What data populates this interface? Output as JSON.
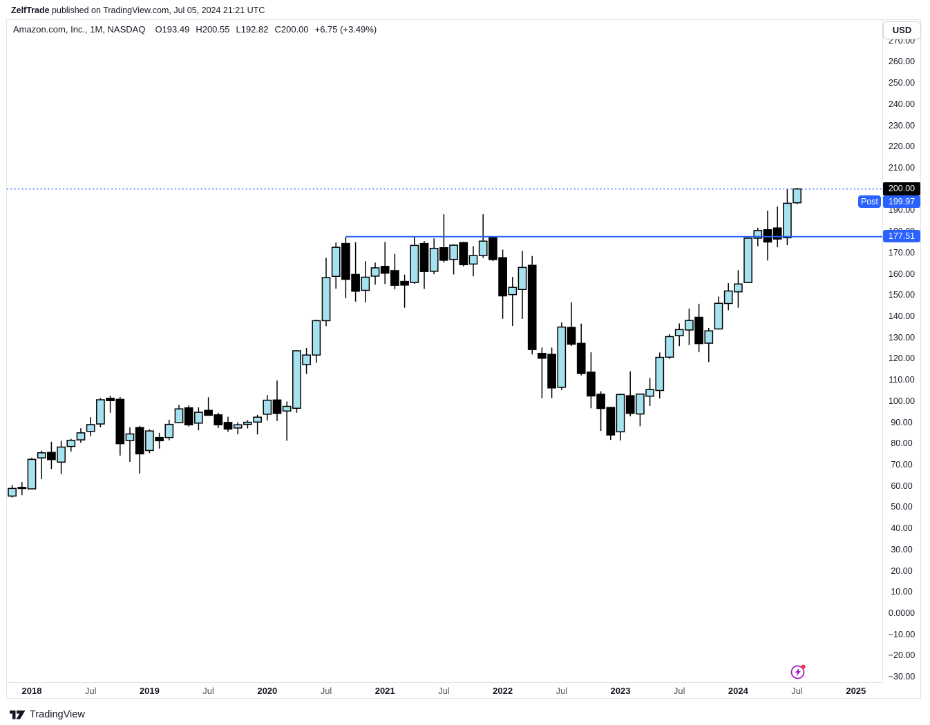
{
  "attribution": {
    "author": "ZelfTrade",
    "text": " published on TradingView.com, Jul 05, 2024 21:21 UTC"
  },
  "header": {
    "symbol_title": "Amazon.com, Inc., 1M, NASDAQ",
    "open": "O193.49",
    "high": "H200.55",
    "low": "L192.82",
    "close": "C200.00",
    "change": "+6.75 (+3.49%)"
  },
  "price_scale": {
    "currency": "USD",
    "last_price_label": "200.00",
    "post_label": "Post",
    "post_price_label": "199.97",
    "ray_price_label": "177.51"
  },
  "footer": {
    "brand": "TradingView"
  },
  "chart_data": {
    "type": "candlestick",
    "title": "Amazon.com, Inc.",
    "interval": "1M",
    "exchange": "NASDAQ",
    "up_color": "#A6E1EF",
    "down_color": "#000000",
    "wick_color": "#000000",
    "line_color": "#2962FF",
    "last_label_bg": "#000000",
    "grid": "off",
    "legend_position": "none",
    "y_axis": {
      "min": -30,
      "max": 270,
      "step": 10,
      "zero_label": "0.0000"
    },
    "x_axis": [
      {
        "text": "2018",
        "month_index": 2,
        "bold": true
      },
      {
        "text": "Jul",
        "month_index": 8,
        "bold": false
      },
      {
        "text": "2019",
        "month_index": 14,
        "bold": true
      },
      {
        "text": "Jul",
        "month_index": 20,
        "bold": false
      },
      {
        "text": "2020",
        "month_index": 26,
        "bold": true
      },
      {
        "text": "Jul",
        "month_index": 32,
        "bold": false
      },
      {
        "text": "2021",
        "month_index": 38,
        "bold": true
      },
      {
        "text": "Jul",
        "month_index": 44,
        "bold": false
      },
      {
        "text": "2022",
        "month_index": 50,
        "bold": true
      },
      {
        "text": "Jul",
        "month_index": 56,
        "bold": false
      },
      {
        "text": "2023",
        "month_index": 62,
        "bold": true
      },
      {
        "text": "Jul",
        "month_index": 68,
        "bold": false
      },
      {
        "text": "2024",
        "month_index": 74,
        "bold": true
      },
      {
        "text": "Jul",
        "month_index": 80,
        "bold": false
      },
      {
        "text": "2025",
        "month_index": 86,
        "bold": true
      }
    ],
    "last_price_line": {
      "price": 200.0,
      "style": "dotted",
      "color": "#2962FF"
    },
    "post_market_price": 199.97,
    "horizontal_ray": {
      "price": 177.51,
      "from": "2020-09",
      "color": "#2962FF"
    },
    "event_marker": {
      "month": "2024-07",
      "colors": {
        "ring": "#A61CC0",
        "dot": "#F23645"
      }
    },
    "candles": [
      [
        "2017-11",
        55.2,
        60.4,
        54.5,
        58.8
      ],
      [
        "2017-12",
        59.3,
        61.8,
        55.6,
        59.0
      ],
      [
        "2018-01",
        58.6,
        73.3,
        58.5,
        72.5
      ],
      [
        "2018-02",
        73.2,
        76.6,
        63.2,
        75.6
      ],
      [
        "2018-03",
        75.8,
        80.8,
        68.0,
        72.4
      ],
      [
        "2018-04",
        71.2,
        81.2,
        65.6,
        78.3
      ],
      [
        "2018-05",
        78.6,
        82.2,
        76.2,
        81.5
      ],
      [
        "2018-06",
        81.7,
        87.2,
        80.3,
        85.0
      ],
      [
        "2018-07",
        85.7,
        92.4,
        83.4,
        88.9
      ],
      [
        "2018-08",
        89.2,
        101.4,
        87.6,
        100.6
      ],
      [
        "2018-09",
        101.3,
        102.5,
        94.5,
        100.2
      ],
      [
        "2018-10",
        100.8,
        101.9,
        74.3,
        79.9
      ],
      [
        "2018-11",
        81.4,
        87.6,
        71.3,
        84.5
      ],
      [
        "2018-12",
        87.5,
        88.3,
        65.8,
        75.1
      ],
      [
        "2019-01",
        76.7,
        86.6,
        75.4,
        85.9
      ],
      [
        "2019-02",
        82.8,
        85.0,
        77.6,
        81.3
      ],
      [
        "2019-03",
        82.8,
        91.2,
        81.5,
        89.0
      ],
      [
        "2019-04",
        89.8,
        98.2,
        89.6,
        96.3
      ],
      [
        "2019-05",
        96.8,
        97.9,
        88.0,
        88.8
      ],
      [
        "2019-06",
        89.6,
        97.0,
        86.2,
        94.7
      ],
      [
        "2019-07",
        95.6,
        101.8,
        93.1,
        93.3
      ],
      [
        "2019-08",
        93.5,
        94.5,
        87.3,
        88.8
      ],
      [
        "2019-09",
        89.9,
        92.6,
        85.5,
        86.8
      ],
      [
        "2019-10",
        87.3,
        90.0,
        84.3,
        88.8
      ],
      [
        "2019-11",
        89.0,
        91.0,
        87.1,
        90.0
      ],
      [
        "2019-12",
        90.1,
        93.5,
        84.3,
        92.4
      ],
      [
        "2020-01",
        93.8,
        102.8,
        90.8,
        100.4
      ],
      [
        "2020-02",
        100.5,
        109.7,
        90.6,
        94.2
      ],
      [
        "2020-03",
        95.3,
        99.8,
        81.3,
        97.5
      ],
      [
        "2020-04",
        96.6,
        124.0,
        94.5,
        123.7
      ],
      [
        "2020-05",
        117.2,
        125.0,
        112.8,
        121.7
      ],
      [
        "2020-06",
        121.7,
        138.4,
        118.0,
        137.9
      ],
      [
        "2020-07",
        137.9,
        167.5,
        135.3,
        158.2
      ],
      [
        "2020-08",
        158.8,
        174.8,
        153.0,
        172.5
      ],
      [
        "2020-09",
        174.3,
        177.51,
        148.5,
        157.4
      ],
      [
        "2020-10",
        159.7,
        174.9,
        146.9,
        151.8
      ],
      [
        "2020-11",
        152.2,
        166.0,
        146.5,
        158.4
      ],
      [
        "2020-12",
        158.9,
        165.3,
        154.9,
        162.8
      ],
      [
        "2021-01",
        163.5,
        175.0,
        155.2,
        160.3
      ],
      [
        "2021-02",
        161.5,
        169.4,
        152.7,
        154.6
      ],
      [
        "2021-03",
        156.4,
        159.6,
        144.0,
        154.7
      ],
      [
        "2021-04",
        155.9,
        177.8,
        155.3,
        173.4
      ],
      [
        "2021-05",
        174.3,
        175.4,
        152.9,
        161.1
      ],
      [
        "2021-06",
        161.2,
        176.7,
        159.8,
        172.0
      ],
      [
        "2021-07",
        172.3,
        188.1,
        165.3,
        166.4
      ],
      [
        "2021-08",
        166.8,
        173.9,
        159.7,
        173.5
      ],
      [
        "2021-09",
        174.7,
        175.1,
        163.5,
        164.3
      ],
      [
        "2021-10",
        164.6,
        173.0,
        158.8,
        168.6
      ],
      [
        "2021-11",
        168.6,
        188.1,
        167.5,
        175.4
      ],
      [
        "2021-12",
        177.0,
        177.6,
        166.0,
        166.7
      ],
      [
        "2022-01",
        167.6,
        171.4,
        138.8,
        149.6
      ],
      [
        "2022-02",
        150.2,
        158.5,
        135.4,
        153.6
      ],
      [
        "2022-03",
        152.6,
        170.8,
        138.7,
        163.0
      ],
      [
        "2022-04",
        164.0,
        168.4,
        122.0,
        124.3
      ],
      [
        "2022-05",
        122.5,
        125.2,
        101.3,
        120.2
      ],
      [
        "2022-06",
        122.0,
        125.2,
        101.4,
        106.2
      ],
      [
        "2022-07",
        106.5,
        137.1,
        105.2,
        134.9
      ],
      [
        "2022-08",
        134.7,
        146.6,
        126.0,
        126.8
      ],
      [
        "2022-09",
        127.2,
        136.5,
        112.1,
        113.0
      ],
      [
        "2022-10",
        113.6,
        123.0,
        96.6,
        102.4
      ],
      [
        "2022-11",
        103.2,
        104.6,
        85.9,
        96.5
      ],
      [
        "2022-12",
        97.0,
        97.2,
        81.7,
        84.0
      ],
      [
        "2023-01",
        85.5,
        103.5,
        81.4,
        103.1
      ],
      [
        "2023-02",
        102.5,
        114.0,
        92.8,
        94.2
      ],
      [
        "2023-03",
        93.9,
        103.5,
        88.1,
        103.3
      ],
      [
        "2023-04",
        102.3,
        110.9,
        97.7,
        105.4
      ],
      [
        "2023-05",
        105.0,
        122.9,
        101.2,
        120.6
      ],
      [
        "2023-06",
        120.7,
        131.5,
        119.9,
        130.4
      ],
      [
        "2023-07",
        130.8,
        136.6,
        125.9,
        133.7
      ],
      [
        "2023-08",
        133.5,
        143.6,
        126.4,
        138.0
      ],
      [
        "2023-09",
        139.5,
        145.9,
        123.0,
        127.1
      ],
      [
        "2023-10",
        127.3,
        134.5,
        118.4,
        133.1
      ],
      [
        "2023-11",
        134.0,
        149.3,
        133.7,
        146.1
      ],
      [
        "2023-12",
        146.0,
        155.6,
        142.8,
        151.9
      ],
      [
        "2024-01",
        151.5,
        161.7,
        144.0,
        155.2
      ],
      [
        "2024-02",
        155.9,
        177.2,
        155.6,
        176.8
      ],
      [
        "2024-03",
        176.8,
        181.7,
        173.0,
        180.4
      ],
      [
        "2024-04",
        180.8,
        189.8,
        166.3,
        175.0
      ],
      [
        "2024-05",
        181.6,
        191.7,
        172.5,
        176.4
      ],
      [
        "2024-06",
        177.0,
        199.8,
        173.5,
        193.25
      ],
      [
        "2024-07",
        193.49,
        200.55,
        192.82,
        200.0
      ]
    ]
  }
}
